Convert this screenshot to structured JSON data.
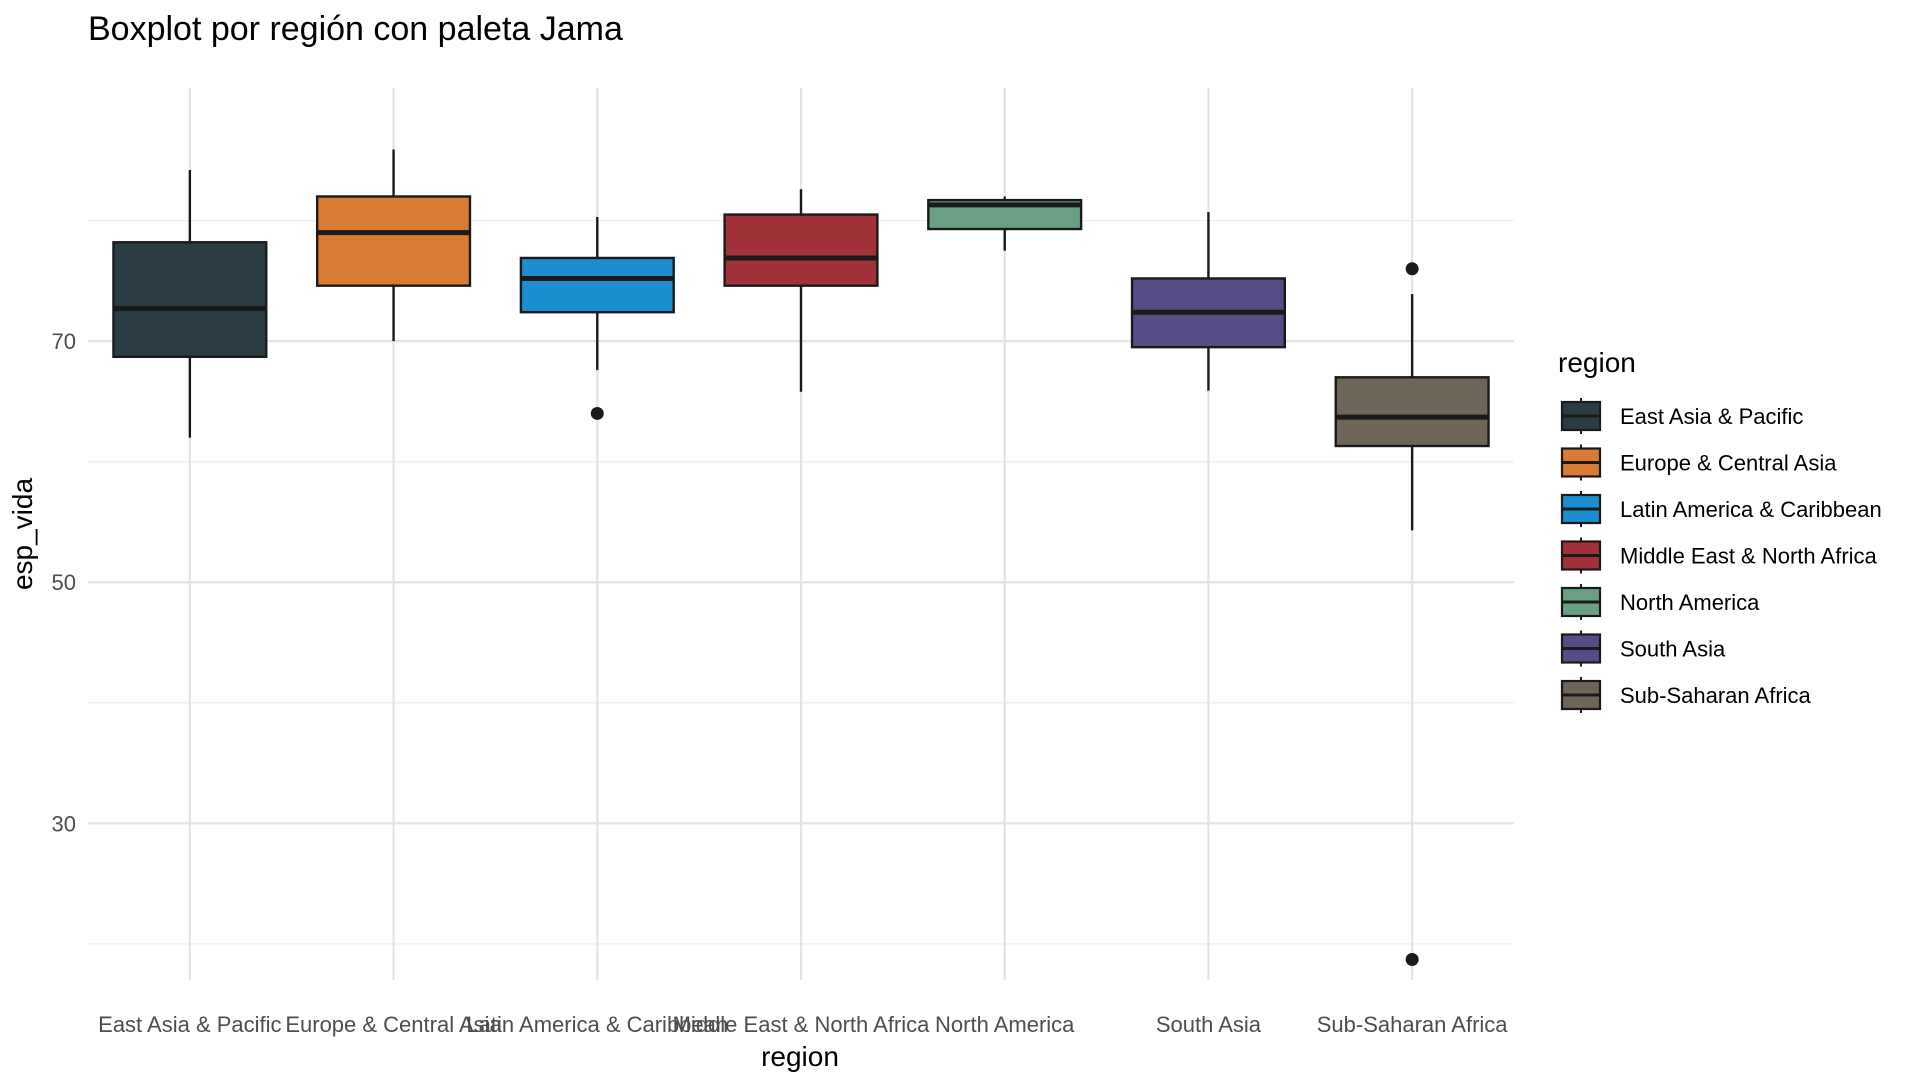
{
  "chart_data": {
    "type": "boxplot",
    "title": "Boxplot por región con paleta Jama",
    "xlabel": "region",
    "ylabel": "esp_vida",
    "ylim": [
      17,
      91
    ],
    "y_ticks": [
      30,
      50,
      70
    ],
    "y_minor_ticks": [
      20,
      40,
      60,
      80
    ],
    "grid": true,
    "legend": {
      "title": "region",
      "position": "right"
    },
    "categories": [
      "East Asia & Pacific",
      "Europe & Central Asia",
      "Latin America & Caribbean",
      "Middle East & North Africa",
      "North America",
      "South Asia",
      "Sub-Saharan Africa"
    ],
    "series": [
      {
        "name": "East Asia & Pacific",
        "color": "#2A3D45",
        "whisker_low": 62,
        "q1": 68.7,
        "median": 72.7,
        "q3": 78.2,
        "whisker_high": 84.2,
        "outliers": []
      },
      {
        "name": "Europe & Central Asia",
        "color": "#D97B35",
        "whisker_low": 70,
        "q1": 74.6,
        "median": 79.0,
        "q3": 82.0,
        "whisker_high": 85.9,
        "outliers": []
      },
      {
        "name": "Latin America & Caribbean",
        "color": "#1A8ECF",
        "whisker_low": 67.6,
        "q1": 72.4,
        "median": 75.2,
        "q3": 76.9,
        "whisker_high": 80.3,
        "outliers": [
          64.0
        ]
      },
      {
        "name": "Middle East & North Africa",
        "color": "#A23239",
        "whisker_low": 65.8,
        "q1": 74.6,
        "median": 76.9,
        "q3": 80.5,
        "whisker_high": 82.6,
        "outliers": []
      },
      {
        "name": "North America",
        "color": "#69A083",
        "whisker_low": 77.5,
        "q1": 79.3,
        "median": 81.3,
        "q3": 81.7,
        "whisker_high": 82.0,
        "outliers": []
      },
      {
        "name": "South Asia",
        "color": "#574D86",
        "whisker_low": 65.9,
        "q1": 69.5,
        "median": 72.4,
        "q3": 75.2,
        "whisker_high": 80.7,
        "outliers": []
      },
      {
        "name": "Sub-Saharan Africa",
        "color": "#6E6559",
        "whisker_low": 54.3,
        "q1": 61.3,
        "median": 63.7,
        "q3": 67.0,
        "whisker_high": 73.9,
        "outliers": [
          76.0,
          18.7
        ]
      }
    ]
  }
}
